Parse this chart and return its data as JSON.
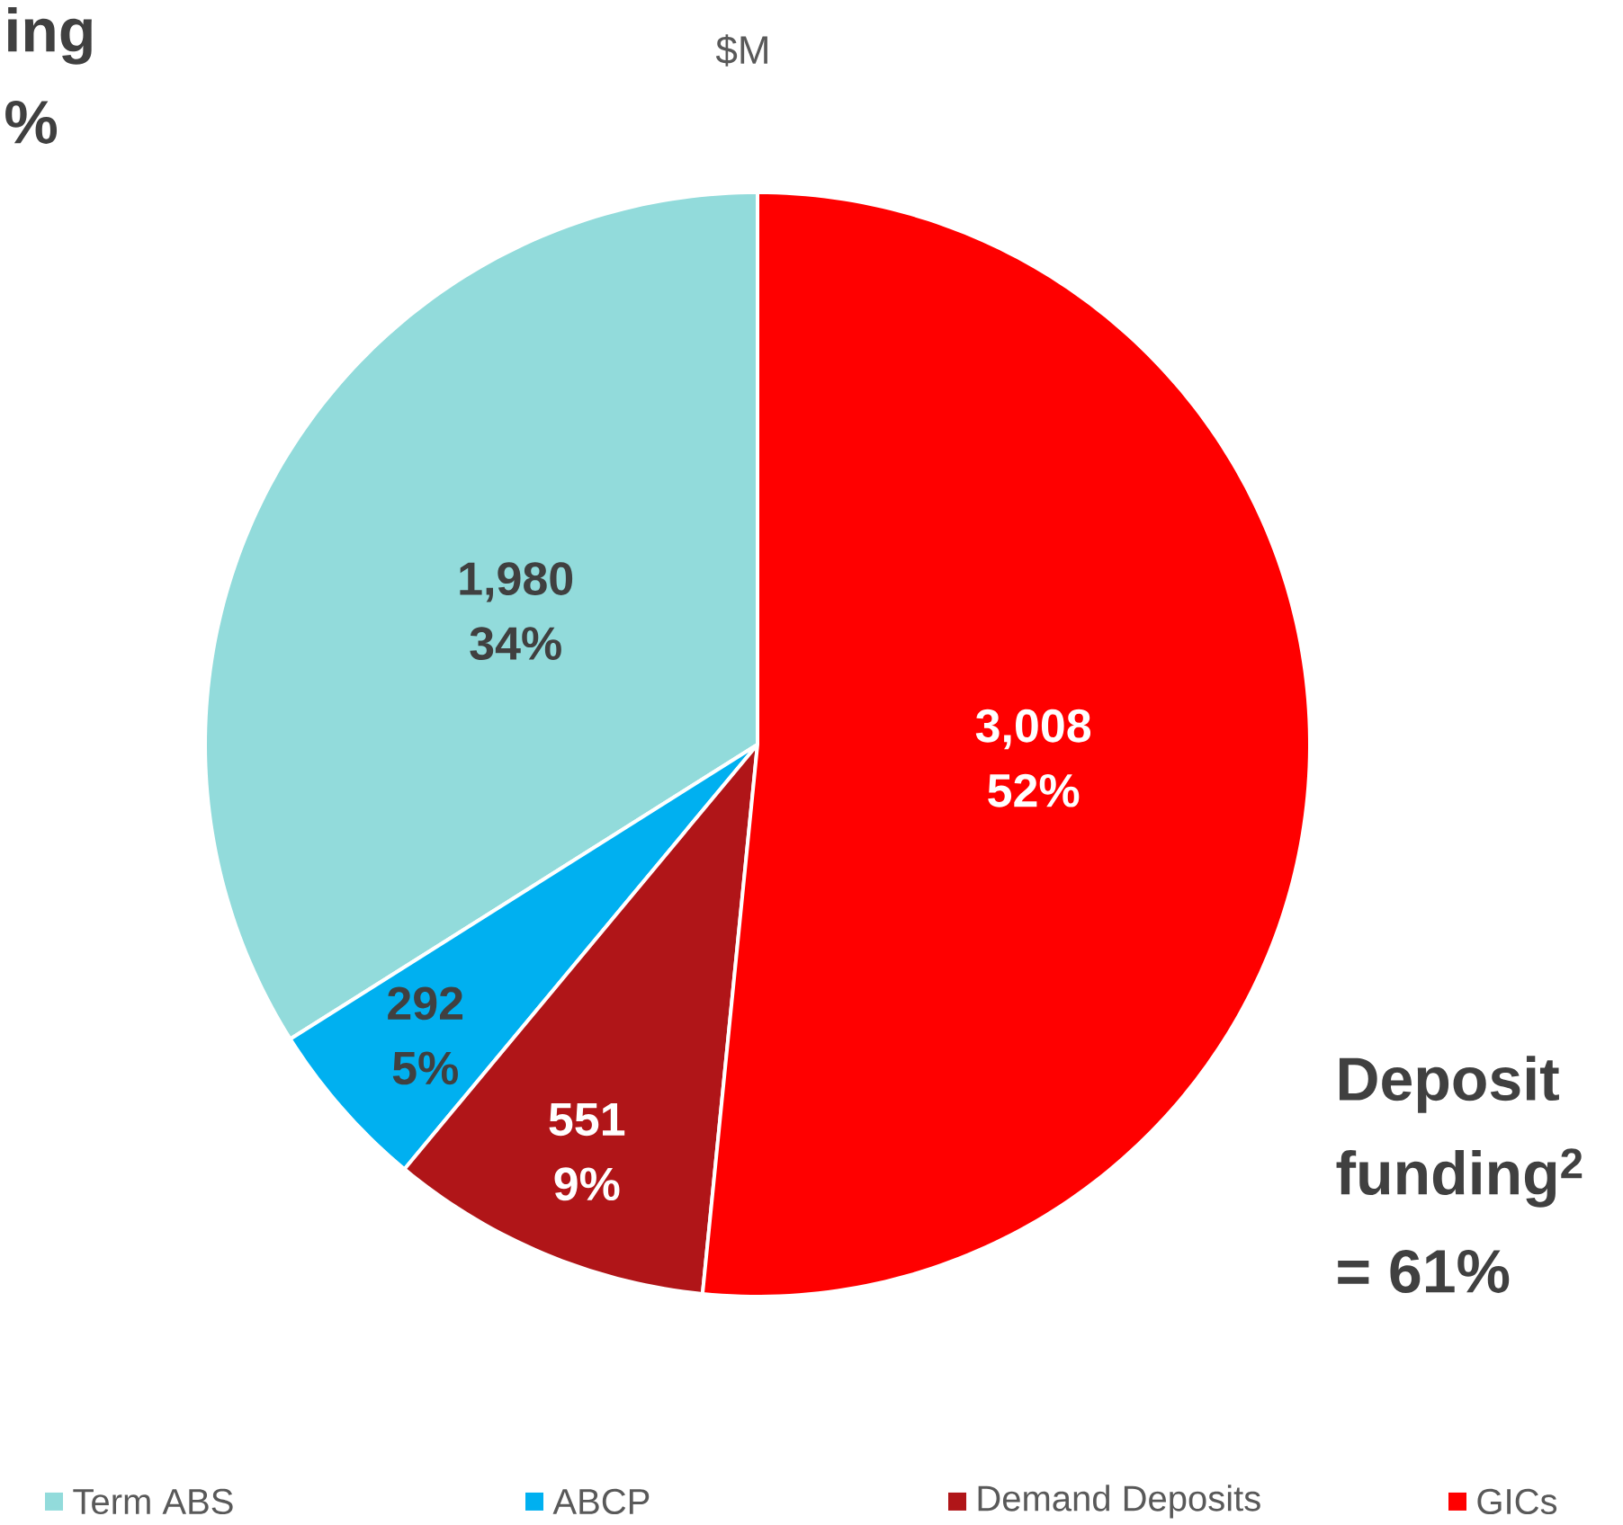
{
  "chart_data": {
    "type": "pie",
    "subtitle": "$M",
    "categories": [
      "Term ABS",
      "ABCP",
      "Demand Deposits",
      "GICs"
    ],
    "values": [
      1980,
      292,
      551,
      3008
    ],
    "colors": [
      "#92dbdb",
      "#00b0f0",
      "#b01518",
      "#ff0000"
    ],
    "value_labels": [
      "1,980 34%",
      "292 5%",
      "551 9%",
      "3,008 52%"
    ],
    "legend": "bottom",
    "annotations": [
      "ing",
      "%",
      "Deposit",
      "funding$^{2}$",
      "= 61%"
    ]
  }
}
